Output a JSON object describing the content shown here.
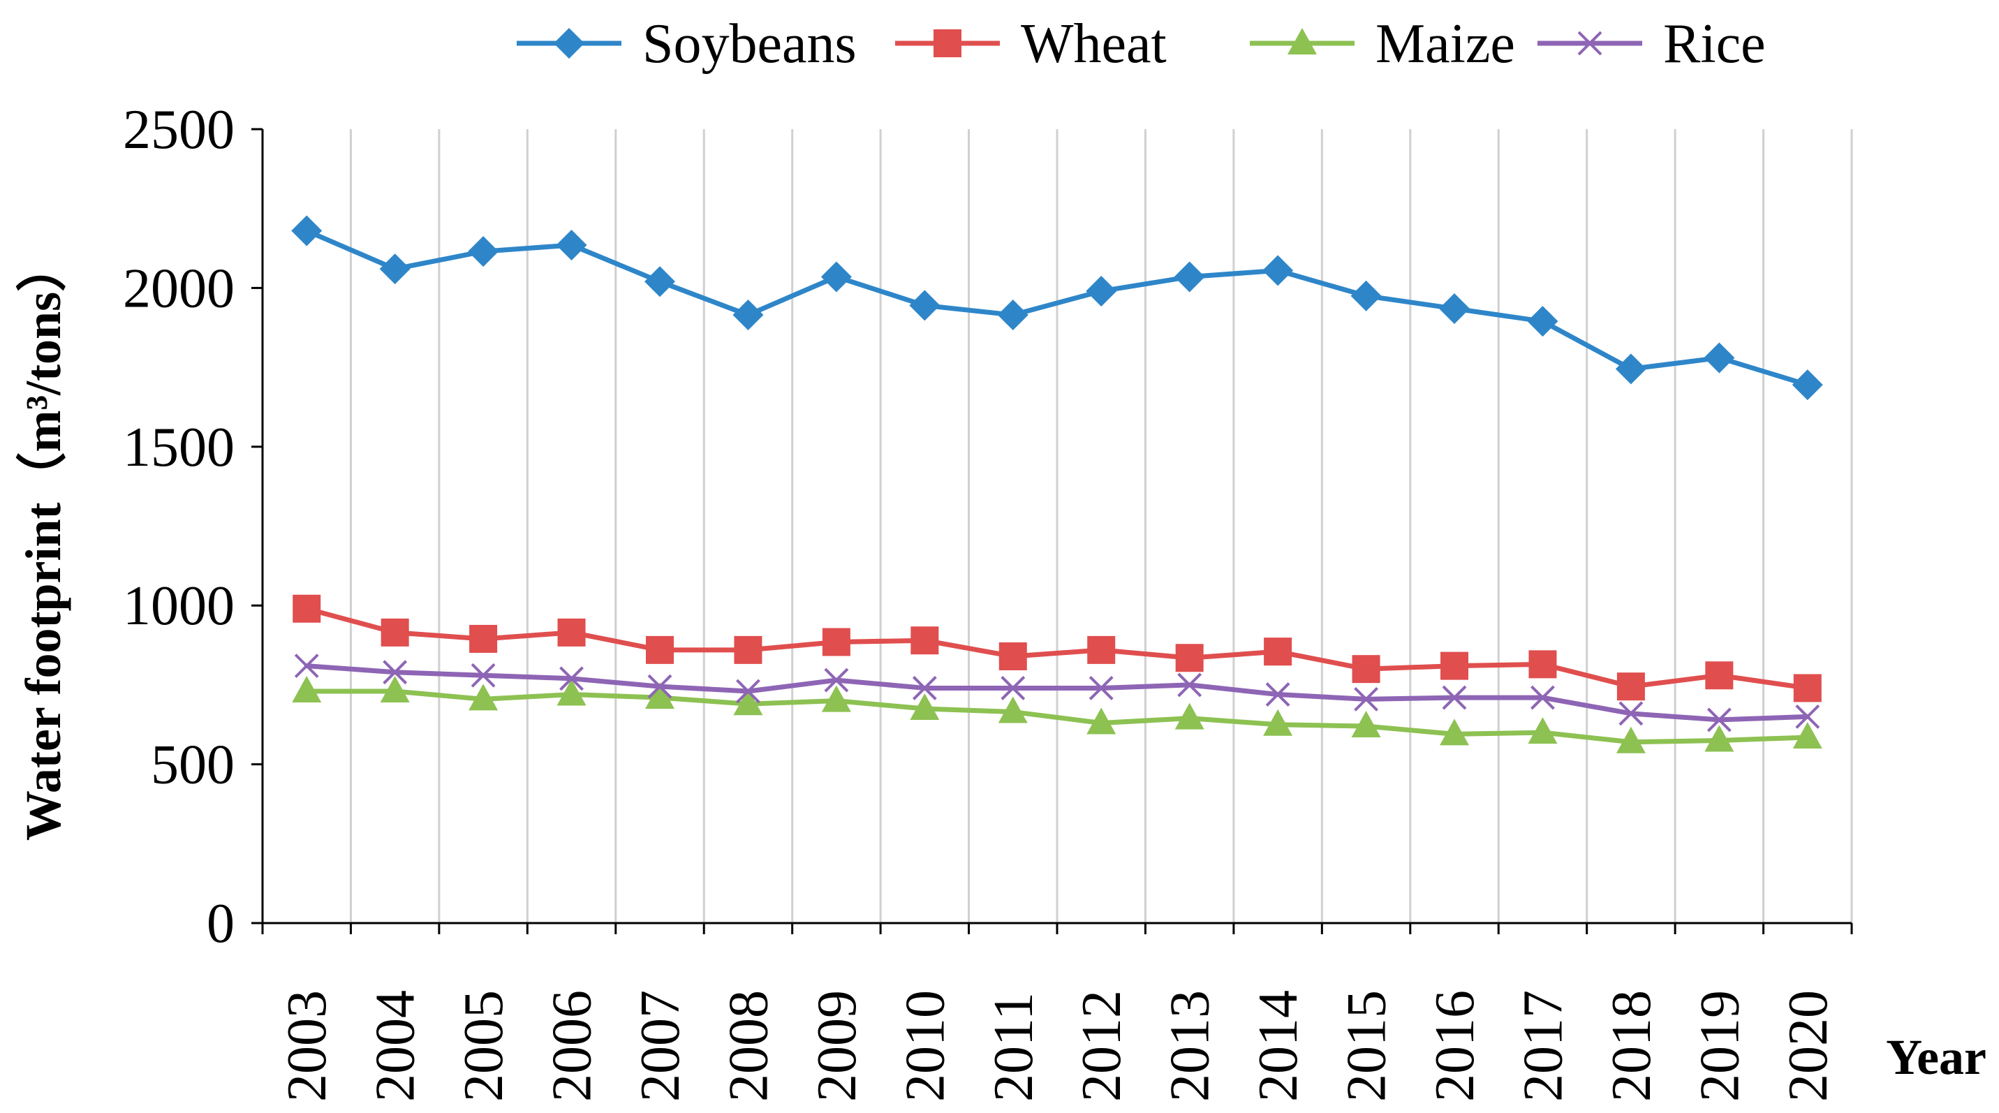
{
  "chart_data": {
    "type": "line",
    "title": "",
    "xlabel": "Year",
    "ylabel": "Water footprint（m³/tons）",
    "ylim": [
      0,
      2500
    ],
    "yticks": [
      0,
      500,
      1000,
      1500,
      2000,
      2500
    ],
    "ytick_labels": [
      "0",
      "500",
      "1000",
      "1500",
      "2000",
      "2500"
    ],
    "grid": "vertical",
    "legend": "top-center",
    "categories": [
      "2003",
      "2004",
      "2005",
      "2006",
      "2007",
      "2008",
      "2009",
      "2010",
      "2011",
      "2012",
      "2013",
      "2014",
      "2015",
      "2016",
      "2017",
      "2018",
      "2019",
      "2020"
    ],
    "series": [
      {
        "name": "Soybeans",
        "color": "#2E86C9",
        "marker": "diamond",
        "values": [
          2180,
          2060,
          2115,
          2135,
          2020,
          1915,
          2035,
          1945,
          1915,
          1990,
          2035,
          2055,
          1975,
          1935,
          1895,
          1745,
          1780,
          1695
        ]
      },
      {
        "name": "Wheat",
        "color": "#E04E4E",
        "marker": "square",
        "values": [
          990,
          915,
          895,
          915,
          860,
          860,
          885,
          890,
          840,
          860,
          835,
          855,
          800,
          810,
          815,
          745,
          780,
          740
        ]
      },
      {
        "name": "Maize",
        "color": "#8DC152",
        "marker": "triangle",
        "values": [
          730,
          730,
          705,
          720,
          710,
          690,
          700,
          675,
          665,
          630,
          645,
          625,
          620,
          595,
          600,
          570,
          575,
          585
        ]
      },
      {
        "name": "Rice",
        "color": "#8E65B5",
        "marker": "x",
        "values": [
          810,
          790,
          780,
          770,
          745,
          730,
          765,
          740,
          740,
          740,
          750,
          720,
          705,
          710,
          710,
          660,
          640,
          650
        ]
      }
    ]
  }
}
